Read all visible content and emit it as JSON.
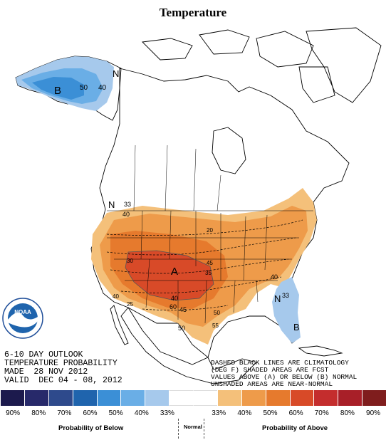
{
  "title": "Temperature",
  "outlook_lines": [
    "6-10 DAY OUTLOOK",
    "TEMPERATURE PROBABILITY",
    "MADE  28 NOV 2012",
    "VALID  DEC 04 - 08, 2012"
  ],
  "legend_note_lines": [
    "DASHED BLACK LINES ARE CLIMATOLOGY",
    "(DEG F) SHADED AREAS ARE FCST",
    "VALUES ABOVE (A) OR BELOW (B) NORMAL",
    "UNSHADED AREAS ARE NEAR-NORMAL"
  ],
  "map_labels": {
    "alaska_b": "B",
    "alaska_n": "N",
    "alaska_50": "50",
    "alaska_40": "40",
    "west_n": "N",
    "west_33": "33",
    "west_40": "40",
    "center_a": "A",
    "c50": "50",
    "c60": "60",
    "c40": "40",
    "c45": "45",
    "se_n": "N",
    "se_33": "33",
    "se_b": "B",
    "ne_40": "40",
    "clim_20": "20",
    "clim_25": "25",
    "clim_30": "30",
    "clim_35": "35",
    "clim_45": "45",
    "clim_50": "50",
    "clim_55": "55",
    "clim_40": "40"
  },
  "colorbar": {
    "colors": [
      "#1c1a4d",
      "#27296a",
      "#2e4a8c",
      "#1f64ad",
      "#3b8fd6",
      "#6aaee6",
      "#a6c9ec",
      "#ffffff",
      "#ffffff",
      "#f4c07a",
      "#ee9b4a",
      "#e67a2d",
      "#d84a28",
      "#c42d2d",
      "#a81f28",
      "#7f1d1d"
    ],
    "labels": [
      "90%",
      "80%",
      "70%",
      "60%",
      "50%",
      "40%",
      "33%",
      "",
      "33%",
      "40%",
      "50%",
      "60%",
      "70%",
      "80%",
      "90%"
    ]
  },
  "captions": {
    "below": "Probability of Below",
    "normal": "Normal",
    "above": "Probability of Above"
  },
  "logo": {
    "name": "NOAA",
    "seal_text": "NATIONAL OCEANIC AND ATMOSPHERIC ADMINISTRATION · U.S. DEPARTMENT OF COMMERCE"
  }
}
